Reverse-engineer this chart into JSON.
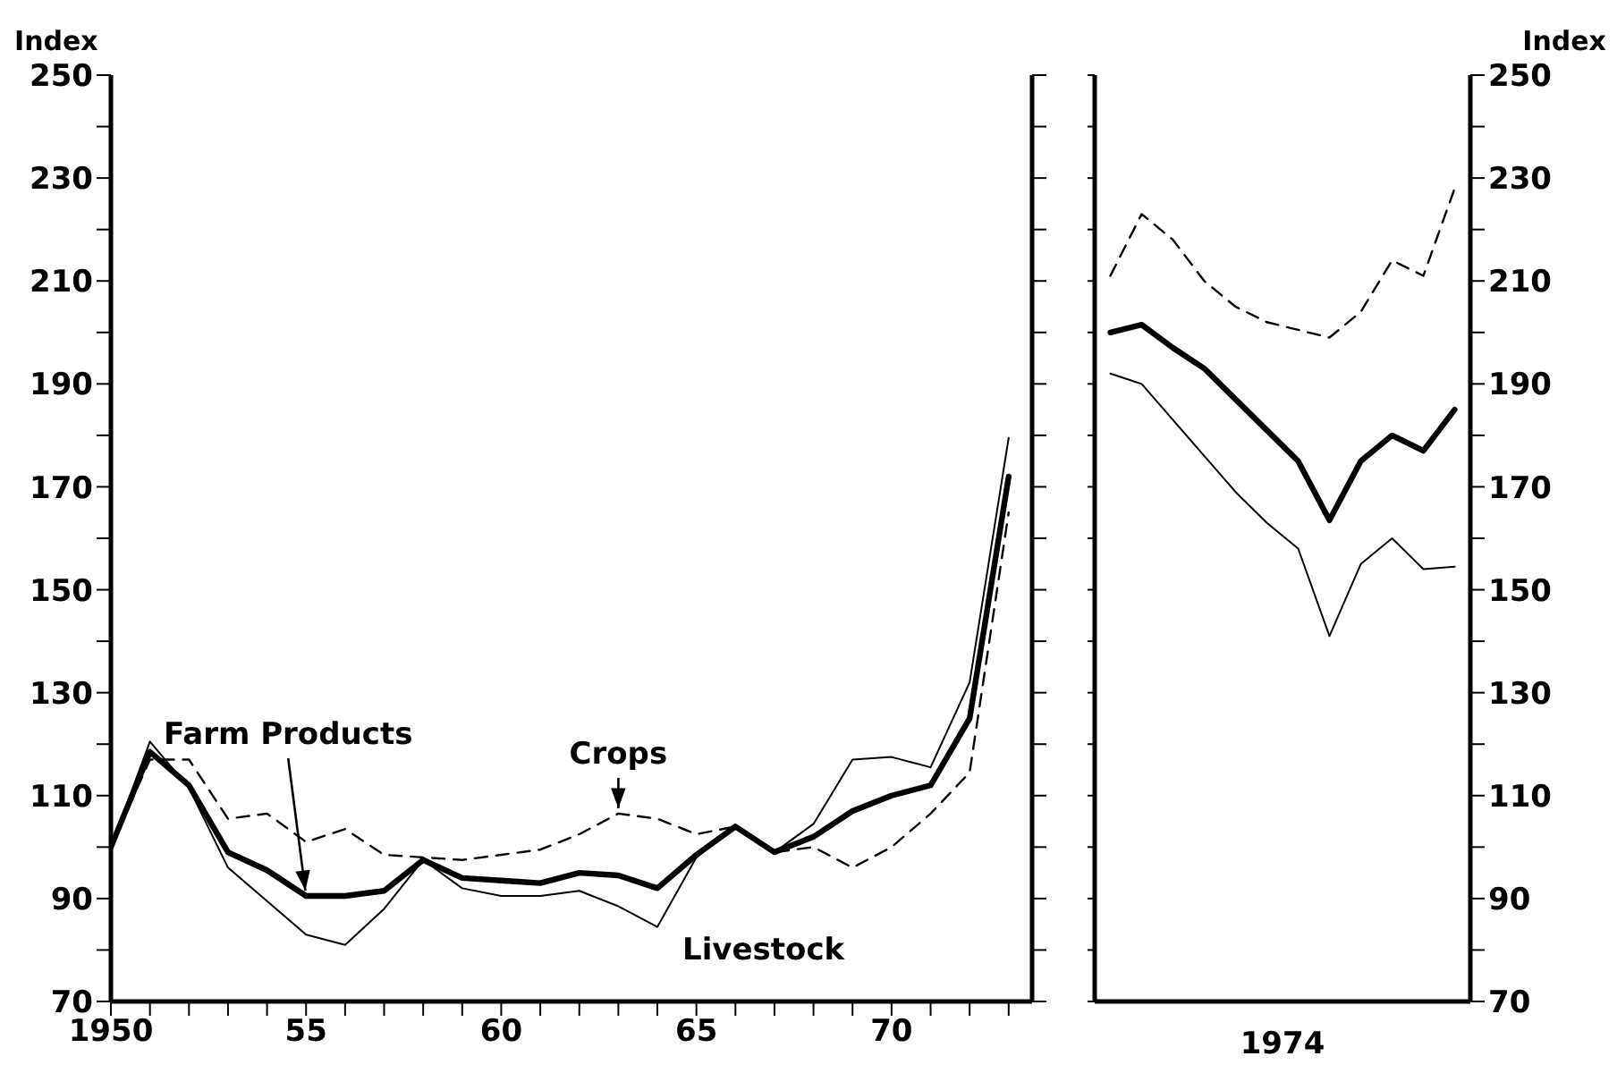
{
  "chart_data": [
    {
      "type": "line",
      "x": [
        1950,
        1951,
        1952,
        1953,
        1954,
        1955,
        1956,
        1957,
        1958,
        1959,
        1960,
        1961,
        1962,
        1963,
        1964,
        1965,
        1966,
        1967,
        1968,
        1969,
        1970,
        1971,
        1972,
        1973
      ],
      "series": [
        {
          "name": "Farm Products",
          "color": "#000000",
          "line_style": "solid",
          "values": [
            100,
            118.5,
            112,
            99,
            95.5,
            90.5,
            90.5,
            91.5,
            97.5,
            94,
            93.5,
            93,
            95,
            94.5,
            92,
            98.5,
            104,
            99,
            102,
            107,
            110,
            112,
            125,
            172
          ]
        },
        {
          "name": "Livestock",
          "color": "#000000",
          "line_style": "solid",
          "values": [
            100,
            120.5,
            111.5,
            96,
            89.5,
            83,
            81,
            88,
            97.5,
            92,
            90.5,
            90.5,
            91.5,
            88.5,
            84.5,
            98,
            104,
            99,
            104.5,
            117,
            117.5,
            115.5,
            132,
            179.5
          ]
        },
        {
          "name": "Crops",
          "color": "#000000",
          "line_style": "dashed",
          "values": [
            100,
            117,
            117,
            105.5,
            106.5,
            101,
            103.5,
            98.5,
            98,
            97.5,
            98.5,
            99.5,
            102.5,
            106.5,
            105.5,
            102.5,
            104,
            99,
            100,
            96,
            100,
            106.5,
            114.5,
            165
          ]
        }
      ],
      "xlim": [
        1950,
        1973.6
      ],
      "xticks": [
        1950,
        {
          "value": 1951,
          "label": null
        },
        {
          "value": 1952,
          "label": null
        },
        {
          "value": 1953,
          "label": null
        },
        {
          "value": 1954,
          "label": null
        },
        {
          "value": 1955,
          "label": "55"
        },
        {
          "value": 1956,
          "label": null
        },
        {
          "value": 1957,
          "label": null
        },
        {
          "value": 1958,
          "label": null
        },
        {
          "value": 1959,
          "label": null
        },
        {
          "value": 1960,
          "label": "60"
        },
        {
          "value": 1961,
          "label": null
        },
        {
          "value": 1962,
          "label": null
        },
        {
          "value": 1963,
          "label": null
        },
        {
          "value": 1964,
          "label": null
        },
        {
          "value": 1965,
          "label": "65"
        },
        {
          "value": 1966,
          "label": null
        },
        {
          "value": 1967,
          "label": null
        },
        {
          "value": 1968,
          "label": null
        },
        {
          "value": 1969,
          "label": null
        },
        {
          "value": 1970,
          "label": "70"
        },
        {
          "value": 1971,
          "label": null
        },
        {
          "value": 1972,
          "label": null
        },
        {
          "value": 1973,
          "label": null
        }
      ],
      "ylabel": "Index",
      "ylim": [
        70,
        250
      ],
      "yticks": [
        70,
        {
          "value": 80,
          "label": null
        },
        90,
        {
          "value": 100,
          "label": null
        },
        110,
        {
          "value": 120,
          "label": null
        },
        130,
        {
          "value": 140,
          "label": null
        },
        150,
        {
          "value": 160,
          "label": null
        },
        170,
        {
          "value": 180,
          "label": null
        },
        190,
        {
          "value": 200,
          "label": null
        },
        210,
        {
          "value": 220,
          "label": null
        },
        230,
        {
          "value": 240,
          "label": null
        },
        250
      ],
      "grid": false,
      "legend": false,
      "marker": "none"
    },
    {
      "type": "line",
      "categories": [
        null,
        null,
        null,
        null,
        null,
        null,
        null,
        null,
        null,
        null,
        null,
        null
      ],
      "xlabel": "1974",
      "series": [
        {
          "color": "#000000",
          "line_style": "solid",
          "values": [
            200,
            201.5,
            197,
            193,
            187,
            181,
            175,
            163.5,
            175,
            180,
            177,
            185
          ]
        },
        {
          "color": "#000000",
          "line_style": "solid",
          "values": [
            192,
            190,
            183,
            176,
            169,
            163,
            158,
            141,
            155,
            160,
            154,
            154.5
          ]
        },
        {
          "color": "#000000",
          "line_style": "dashed",
          "values": [
            211,
            223,
            218,
            210,
            205,
            202,
            200.5,
            199,
            204,
            214,
            211,
            228
          ]
        }
      ],
      "ylabel": "Index",
      "ylim": [
        70,
        250
      ],
      "yticks": [
        70,
        {
          "value": 80,
          "label": null
        },
        90,
        {
          "value": 100,
          "label": null
        },
        110,
        {
          "value": 120,
          "label": null
        },
        130,
        {
          "value": 140,
          "label": null
        },
        150,
        {
          "value": 160,
          "label": null
        },
        170,
        {
          "value": 180,
          "label": null
        },
        190,
        {
          "value": 200,
          "label": null
        },
        210,
        {
          "value": 220,
          "label": null
        },
        230,
        {
          "value": 240,
          "label": null
        },
        250
      ],
      "tick_labels": "y",
      "grid": false,
      "legend": false,
      "marker": "none"
    }
  ]
}
